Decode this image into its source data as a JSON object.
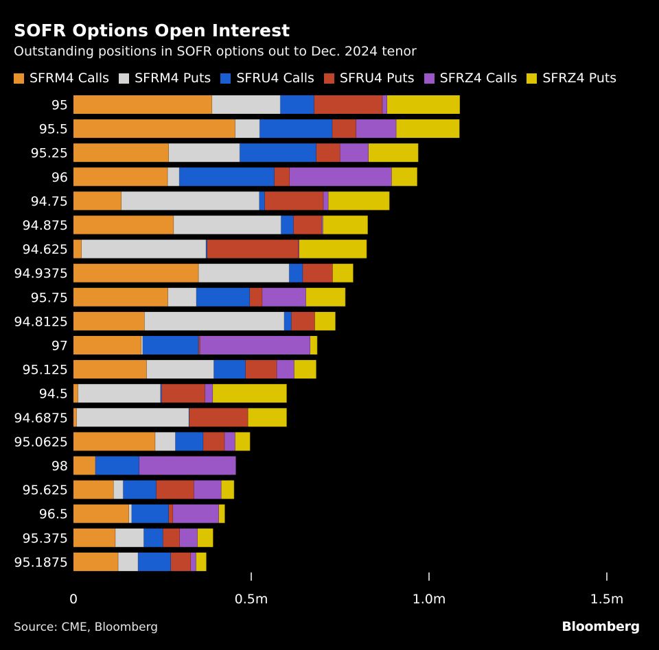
{
  "chart_data": {
    "type": "bar",
    "orientation": "horizontal",
    "stacked": true,
    "title": "SOFR Options Open Interest",
    "subtitle": "Outstanding positions in SOFR options out to Dec. 2024 tenor",
    "xlabel": "",
    "ylabel": "",
    "xlim": [
      0,
      1600000
    ],
    "xticks": [
      0,
      500000,
      1000000,
      1500000
    ],
    "xtick_labels": [
      "0",
      "0.5m",
      "1.0m",
      "1.5m"
    ],
    "legend_position": "top",
    "categories": [
      "95",
      "95.5",
      "95.25",
      "96",
      "94.75",
      "94.875",
      "94.625",
      "94.9375",
      "95.75",
      "94.8125",
      "97",
      "95.125",
      "94.5",
      "94.6875",
      "95.0625",
      "98",
      "95.625",
      "96.5",
      "95.375",
      "95.1875"
    ],
    "series": [
      {
        "name": "SFRM4 Calls",
        "color": "#e8922e",
        "values": [
          390000,
          455000,
          268000,
          265000,
          135000,
          282000,
          23000,
          352000,
          266000,
          200000,
          191000,
          206000,
          13000,
          9000,
          230000,
          62000,
          113000,
          156000,
          118000,
          126000
        ]
      },
      {
        "name": "SFRM4 Puts",
        "color": "#d4d4d4",
        "values": [
          192000,
          69000,
          200000,
          33000,
          388000,
          302000,
          350000,
          255000,
          80000,
          393000,
          4000,
          189000,
          232000,
          316000,
          57000,
          0,
          27000,
          8000,
          80000,
          56000
        ]
      },
      {
        "name": "SFRU4 Calls",
        "color": "#1a5fd1",
        "values": [
          95000,
          204000,
          215000,
          267000,
          15000,
          35000,
          3000,
          38000,
          150000,
          20000,
          157000,
          89000,
          3000,
          1000,
          78000,
          123000,
          93000,
          104000,
          54000,
          92000
        ]
      },
      {
        "name": "SFRU4 Puts",
        "color": "#c1452a",
        "values": [
          192000,
          67000,
          67000,
          43000,
          165000,
          79000,
          257000,
          84000,
          35000,
          66000,
          4000,
          88000,
          122000,
          165000,
          60000,
          0,
          106000,
          12000,
          47000,
          56000
        ]
      },
      {
        "name": "SFRZ4 Calls",
        "color": "#9b57c6",
        "values": [
          13000,
          113000,
          80000,
          287000,
          14000,
          4000,
          2000,
          0,
          123000,
          0,
          310000,
          49000,
          22000,
          0,
          30000,
          272000,
          77000,
          129000,
          50000,
          15000
        ]
      },
      {
        "name": "SFRZ4 Puts",
        "color": "#dcc400",
        "values": [
          205000,
          178000,
          140000,
          72000,
          172000,
          126000,
          190000,
          58000,
          111000,
          58000,
          20000,
          62000,
          208000,
          109000,
          42000,
          0,
          36000,
          17000,
          44000,
          29000
        ]
      }
    ]
  },
  "footer": {
    "source": "Source: CME, Bloomberg",
    "brand": "Bloomberg"
  }
}
